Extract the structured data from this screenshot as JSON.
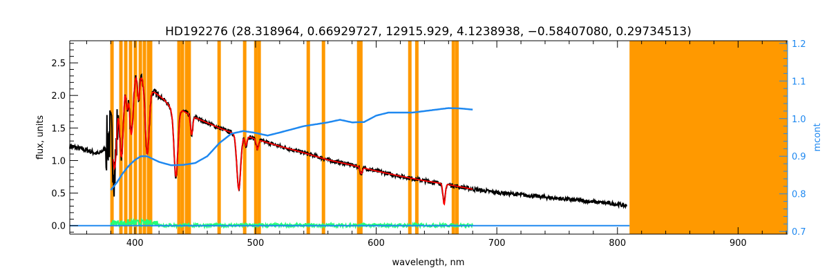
{
  "chart_data": {
    "type": "line",
    "title": "HD192276   (28.318964, 0.66929727, 12915.929, 4.1238938, −0.58407080, 0.29734513)",
    "xlabel": "wavelength, nm",
    "ylabel": "flux, units",
    "ylabel_right": "mcont",
    "xlim": [
      346,
      941
    ],
    "ylim": [
      -0.13,
      2.84
    ],
    "ylim_right": [
      0.693,
      1.207
    ],
    "xticks": [
      "400",
      "500",
      "600",
      "700",
      "800",
      "900"
    ],
    "yticks": [
      "0.0",
      "0.5",
      "1.0",
      "1.5",
      "2.0",
      "2.5"
    ],
    "yticks_right": [
      "0.7",
      "0.8",
      "0.9",
      "1.0",
      "1.1",
      "1.2"
    ],
    "grid": false,
    "colors": {
      "spectrum": "#000000",
      "fit": "#ff0000",
      "mask": "#ff9900",
      "mcont": "#1e88f0",
      "residual": "#22ff77",
      "fitpts": "#ffff00",
      "right_axis": "#1e88f0"
    },
    "masked_lines_nm": [
      381,
      388.4,
      392.4,
      396.4,
      400.4,
      404.5,
      407.9,
      411.3,
      413,
      436.5,
      439.4,
      442.8,
      445,
      469.8,
      491,
      500.2,
      503,
      543.7,
      556.3,
      585.5,
      587.3,
      627.9,
      633.7,
      664,
      667
    ],
    "masked_region_nm": [
      810,
      941
    ],
    "spectrum_continuum": [
      [
        346,
        1.22
      ],
      [
        360,
        1.16
      ],
      [
        370,
        1.1
      ],
      [
        376,
        1.2
      ],
      [
        382,
        1.6
      ],
      [
        386,
        2.15
      ],
      [
        390,
        2.3
      ],
      [
        395,
        2.42
      ],
      [
        400,
        2.36
      ],
      [
        405,
        2.3
      ],
      [
        410,
        2.2
      ],
      [
        415,
        2.06
      ],
      [
        420,
        2.0
      ],
      [
        425,
        1.92
      ],
      [
        430,
        1.8
      ],
      [
        435,
        1.8
      ],
      [
        440,
        1.76
      ],
      [
        450,
        1.66
      ],
      [
        460,
        1.58
      ],
      [
        470,
        1.5
      ],
      [
        480,
        1.43
      ],
      [
        490,
        1.39
      ],
      [
        500,
        1.33
      ],
      [
        520,
        1.22
      ],
      [
        540,
        1.12
      ],
      [
        560,
        1.01
      ],
      [
        580,
        0.93
      ],
      [
        600,
        0.84
      ],
      [
        620,
        0.76
      ],
      [
        640,
        0.69
      ],
      [
        660,
        0.63
      ],
      [
        680,
        0.56
      ],
      [
        700,
        0.51
      ],
      [
        750,
        0.42
      ],
      [
        800,
        0.33
      ],
      [
        808,
        0.3
      ]
    ],
    "absorption_lines": [
      [
        383.5,
        0.9
      ],
      [
        388.9,
        1.2
      ],
      [
        393.4,
        0.5
      ],
      [
        397,
        1.0
      ],
      [
        403,
        0.4
      ],
      [
        410.2,
        1.1
      ],
      [
        434,
        1.05
      ],
      [
        447,
        0.3
      ],
      [
        486.1,
        0.85
      ],
      [
        492,
        0.15
      ],
      [
        501.5,
        0.15
      ],
      [
        587.6,
        0.1
      ],
      [
        656.3,
        0.32
      ]
    ],
    "fit_range_nm": [
      382,
      680
    ],
    "mcont": [
      [
        380,
        0.81
      ],
      [
        385,
        0.83
      ],
      [
        390,
        0.855
      ],
      [
        395,
        0.875
      ],
      [
        400,
        0.89
      ],
      [
        405,
        0.9
      ],
      [
        410,
        0.9
      ],
      [
        420,
        0.885
      ],
      [
        430,
        0.876
      ],
      [
        440,
        0.877
      ],
      [
        450,
        0.882
      ],
      [
        460,
        0.9
      ],
      [
        470,
        0.935
      ],
      [
        480,
        0.96
      ],
      [
        490,
        0.967
      ],
      [
        500,
        0.962
      ],
      [
        510,
        0.955
      ],
      [
        520,
        0.963
      ],
      [
        540,
        0.98
      ],
      [
        560,
        0.99
      ],
      [
        570,
        0.997
      ],
      [
        580,
        0.99
      ],
      [
        590,
        0.991
      ],
      [
        600,
        1.008
      ],
      [
        610,
        1.016
      ],
      [
        630,
        1.016
      ],
      [
        640,
        1.02
      ],
      [
        660,
        1.028
      ],
      [
        670,
        1.027
      ],
      [
        680,
        1.024
      ]
    ],
    "mcont_flat_flux": 0.0,
    "residual_range_nm": [
      380,
      680
    ]
  }
}
